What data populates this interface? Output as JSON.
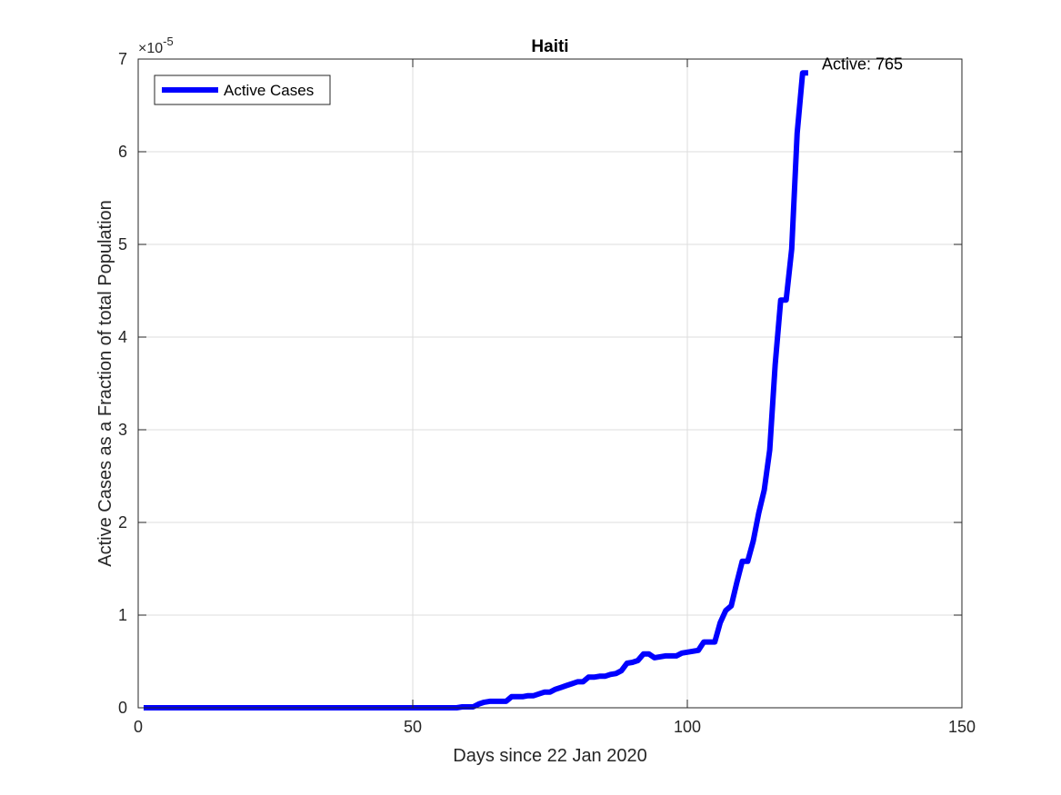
{
  "chart_data": {
    "type": "line",
    "title": "Haiti",
    "xlabel": "Days since 22 Jan 2020",
    "ylabel": "Active Cases as a Fraction of total Population",
    "xlim": [
      0,
      150
    ],
    "ylim": [
      0,
      7e-05
    ],
    "y_exponent_label": "×10",
    "y_exponent_power": "-5",
    "x_ticks": [
      0,
      50,
      100,
      150
    ],
    "y_ticks": [
      0,
      1e-05,
      2e-05,
      3e-05,
      4e-05,
      5e-05,
      6e-05,
      7e-05
    ],
    "x_tick_labels": [
      "0",
      "50",
      "100",
      "150"
    ],
    "y_tick_labels": [
      "0",
      "1",
      "2",
      "3",
      "4",
      "5",
      "6",
      "7"
    ],
    "grid": true,
    "legend": {
      "position": "top-left",
      "label": "Active Cases"
    },
    "annotation": {
      "text": "Active: 765",
      "x": 124.5,
      "y": 6.85e-05
    },
    "series": [
      {
        "name": "Active Cases",
        "color": "#0000ff",
        "x": [
          1,
          10,
          20,
          30,
          40,
          50,
          57,
          58,
          59,
          60,
          61,
          62,
          63,
          64,
          65,
          66,
          67,
          68,
          69,
          70,
          71,
          72,
          73,
          74,
          75,
          76,
          77,
          78,
          79,
          80,
          81,
          82,
          83,
          84,
          85,
          86,
          87,
          88,
          89,
          90,
          91,
          92,
          93,
          94,
          95,
          96,
          97,
          98,
          99,
          100,
          101,
          102,
          103,
          104,
          105,
          106,
          107,
          108,
          109,
          110,
          111,
          112,
          113,
          114,
          115,
          116,
          117,
          118,
          119,
          120,
          121,
          122
        ],
        "y": [
          0,
          0,
          0,
          0,
          0,
          0,
          0,
          0,
          1e-07,
          1e-07,
          1e-07,
          4e-07,
          6e-07,
          7e-07,
          7e-07,
          7e-07,
          7e-07,
          1.2e-06,
          1.2e-06,
          1.2e-06,
          1.3e-06,
          1.3e-06,
          1.5e-06,
          1.7e-06,
          1.7e-06,
          2e-06,
          2.2e-06,
          2.4e-06,
          2.6e-06,
          2.8e-06,
          2.8e-06,
          3.3e-06,
          3.3e-06,
          3.4e-06,
          3.4e-06,
          3.6e-06,
          3.7e-06,
          4e-06,
          4.8e-06,
          4.9e-06,
          5.1e-06,
          5.8e-06,
          5.8e-06,
          5.4e-06,
          5.5e-06,
          5.6e-06,
          5.6e-06,
          5.6e-06,
          5.9e-06,
          6e-06,
          6.1e-06,
          6.2e-06,
          7.1e-06,
          7.1e-06,
          7.1e-06,
          9.2e-06,
          1.05e-05,
          1.1e-05,
          1.35e-05,
          1.58e-05,
          1.58e-05,
          1.8e-05,
          2.1e-05,
          2.35e-05,
          2.78e-05,
          3.7e-05,
          4.4e-05,
          4.4e-05,
          4.95e-05,
          6.2e-05,
          6.85e-05,
          6.85e-05
        ]
      }
    ]
  }
}
